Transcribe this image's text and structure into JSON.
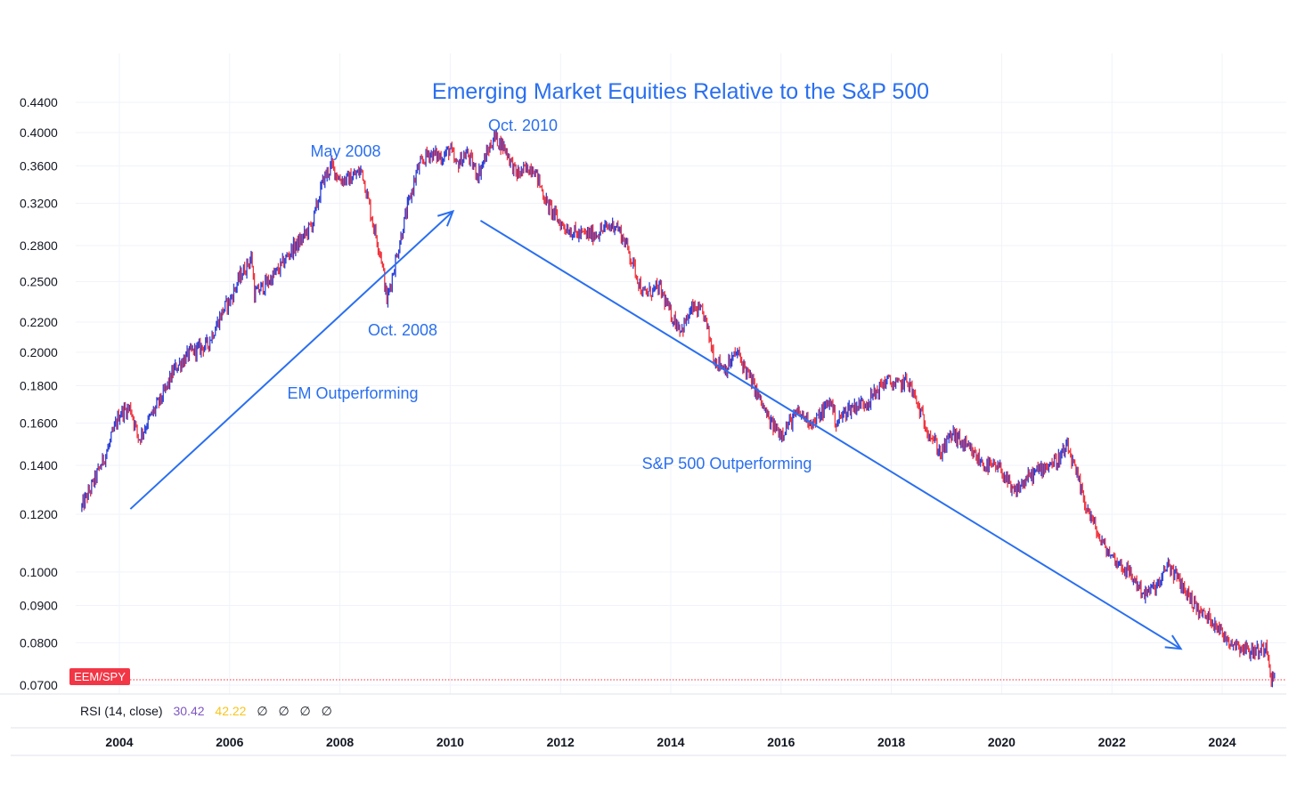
{
  "chart_data": {
    "type": "line",
    "title": "Emerging Market Equities Relative to the S&P 500",
    "symbol": "EEM/SPY",
    "y_scale": "log",
    "ylim": [
      0.069,
      0.46
    ],
    "xlim": [
      2003.3,
      2024.95
    ],
    "y_ticks": [
      "0.4400",
      "0.4000",
      "0.3600",
      "0.3200",
      "0.2800",
      "0.2500",
      "0.2200",
      "0.2000",
      "0.1800",
      "0.1600",
      "0.1400",
      "0.1200",
      "0.1000",
      "0.0900",
      "0.0800",
      "0.0700"
    ],
    "x_ticks": [
      "2004",
      "2006",
      "2008",
      "2010",
      "2012",
      "2014",
      "2016",
      "2018",
      "2020",
      "2022",
      "2024"
    ],
    "series": [
      {
        "x": [
          2003.3,
          2003.5,
          2003.8,
          2004.0,
          2004.2,
          2004.35,
          2004.5,
          2004.8,
          2005.0,
          2005.3,
          2005.6,
          2005.9,
          2006.0,
          2006.2,
          2006.4,
          2006.45,
          2006.7,
          2006.9,
          2007.1,
          2007.3,
          2007.5,
          2007.7,
          2007.85,
          2008.0,
          2008.15,
          2008.4,
          2008.6,
          2008.75,
          2008.85,
          2009.0,
          2009.2,
          2009.4,
          2009.6,
          2009.85,
          2010.0,
          2010.1,
          2010.3,
          2010.5,
          2010.8,
          2011.0,
          2011.2,
          2011.5,
          2011.75,
          2012.0,
          2012.3,
          2012.6,
          2012.8,
          2013.0,
          2013.2,
          2013.5,
          2013.8,
          2014.0,
          2014.2,
          2014.4,
          2014.6,
          2014.8,
          2015.0,
          2015.2,
          2015.5,
          2015.8,
          2016.0,
          2016.3,
          2016.6,
          2016.9,
          2017.0,
          2017.2,
          2017.6,
          2017.9,
          2018.1,
          2018.3,
          2018.6,
          2018.9,
          2019.1,
          2019.4,
          2019.7,
          2020.0,
          2020.2,
          2020.5,
          2020.8,
          2021.0,
          2021.2,
          2021.5,
          2021.8,
          2022.0,
          2022.3,
          2022.6,
          2022.9,
          2023.0,
          2023.3,
          2023.6,
          2023.9,
          2024.0,
          2024.2,
          2024.5,
          2024.7,
          2024.8,
          2024.9
        ],
        "y": [
          0.122,
          0.131,
          0.148,
          0.165,
          0.168,
          0.152,
          0.16,
          0.175,
          0.19,
          0.2,
          0.205,
          0.23,
          0.235,
          0.255,
          0.27,
          0.24,
          0.25,
          0.26,
          0.275,
          0.285,
          0.3,
          0.345,
          0.36,
          0.345,
          0.345,
          0.355,
          0.3,
          0.27,
          0.235,
          0.265,
          0.31,
          0.355,
          0.375,
          0.37,
          0.38,
          0.36,
          0.375,
          0.35,
          0.395,
          0.38,
          0.35,
          0.36,
          0.32,
          0.3,
          0.29,
          0.29,
          0.295,
          0.3,
          0.28,
          0.24,
          0.245,
          0.225,
          0.215,
          0.23,
          0.225,
          0.195,
          0.19,
          0.2,
          0.18,
          0.16,
          0.155,
          0.165,
          0.16,
          0.172,
          0.16,
          0.167,
          0.172,
          0.183,
          0.18,
          0.183,
          0.16,
          0.145,
          0.155,
          0.147,
          0.14,
          0.138,
          0.128,
          0.135,
          0.14,
          0.142,
          0.148,
          0.125,
          0.11,
          0.105,
          0.1,
          0.093,
          0.097,
          0.103,
          0.095,
          0.088,
          0.085,
          0.082,
          0.08,
          0.078,
          0.078,
          0.08,
          0.0712
        ]
      }
    ],
    "last_value_line": 0.0712,
    "annotations": [
      "May 2008",
      "Oct. 2010",
      "Oct. 2008",
      "EM Outperforming",
      "S&P 500 Outperforming"
    ],
    "arrows": [
      {
        "from": [
          2004.2,
          0.122
        ],
        "to": [
          2010.05,
          0.312
        ]
      },
      {
        "from": [
          2010.55,
          0.303
        ],
        "to": [
          2023.25,
          0.0785
        ]
      }
    ],
    "rsi": {
      "label": "RSI (14, close)",
      "value1": "30.42",
      "value2": "42.22",
      "empty_values": [
        "∅",
        "∅",
        "∅",
        "∅"
      ]
    },
    "grid": true,
    "colors": {
      "up": "#2a3fd8",
      "down": "#f0323c",
      "accent": "#2a6ff0",
      "rsi1": "#7e57c2",
      "rsi2": "#f7d21c",
      "badge": "#f23645"
    }
  }
}
